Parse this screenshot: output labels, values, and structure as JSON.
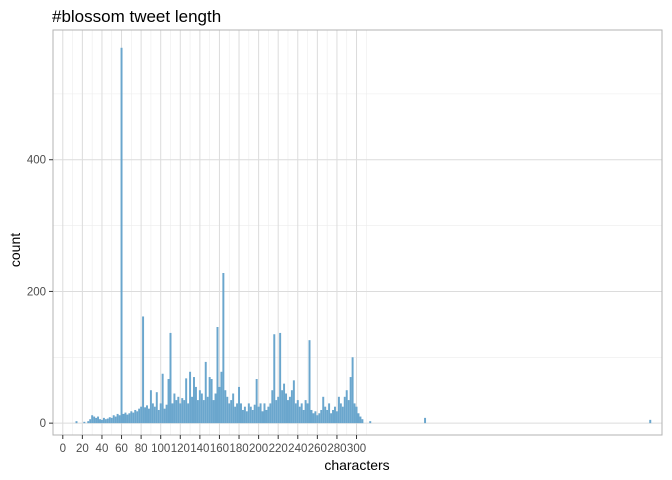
{
  "chart_data": {
    "type": "bar",
    "title": "#blossom tweet length",
    "xlabel": "characters",
    "ylabel": "count",
    "xlim": [
      -10,
      612
    ],
    "ylim": [
      -18,
      597
    ],
    "x_ticks": [
      0,
      20,
      40,
      60,
      80,
      100,
      120,
      140,
      160,
      180,
      200,
      220,
      240,
      260,
      280,
      300
    ],
    "y_ticks": [
      0,
      200,
      400
    ],
    "bar_color": "#6aa6cd",
    "grid": true,
    "bars": [
      {
        "x": 14,
        "y": 3
      },
      {
        "x": 22,
        "y": 2
      },
      {
        "x": 26,
        "y": 3
      },
      {
        "x": 28,
        "y": 6
      },
      {
        "x": 30,
        "y": 12
      },
      {
        "x": 32,
        "y": 10
      },
      {
        "x": 34,
        "y": 8
      },
      {
        "x": 36,
        "y": 10
      },
      {
        "x": 38,
        "y": 6
      },
      {
        "x": 40,
        "y": 5
      },
      {
        "x": 42,
        "y": 8
      },
      {
        "x": 44,
        "y": 6
      },
      {
        "x": 46,
        "y": 7
      },
      {
        "x": 48,
        "y": 9
      },
      {
        "x": 50,
        "y": 8
      },
      {
        "x": 52,
        "y": 12
      },
      {
        "x": 54,
        "y": 10
      },
      {
        "x": 56,
        "y": 14
      },
      {
        "x": 58,
        "y": 12
      },
      {
        "x": 60,
        "y": 570
      },
      {
        "x": 62,
        "y": 14
      },
      {
        "x": 64,
        "y": 16
      },
      {
        "x": 66,
        "y": 13
      },
      {
        "x": 68,
        "y": 15
      },
      {
        "x": 70,
        "y": 18
      },
      {
        "x": 72,
        "y": 16
      },
      {
        "x": 74,
        "y": 20
      },
      {
        "x": 76,
        "y": 18
      },
      {
        "x": 78,
        "y": 22
      },
      {
        "x": 80,
        "y": 25
      },
      {
        "x": 82,
        "y": 162
      },
      {
        "x": 84,
        "y": 24
      },
      {
        "x": 86,
        "y": 27
      },
      {
        "x": 88,
        "y": 22
      },
      {
        "x": 90,
        "y": 50
      },
      {
        "x": 92,
        "y": 30
      },
      {
        "x": 94,
        "y": 25
      },
      {
        "x": 96,
        "y": 47
      },
      {
        "x": 98,
        "y": 20
      },
      {
        "x": 100,
        "y": 30
      },
      {
        "x": 102,
        "y": 75
      },
      {
        "x": 104,
        "y": 22
      },
      {
        "x": 106,
        "y": 28
      },
      {
        "x": 108,
        "y": 67
      },
      {
        "x": 110,
        "y": 137
      },
      {
        "x": 112,
        "y": 30
      },
      {
        "x": 114,
        "y": 45
      },
      {
        "x": 116,
        "y": 35
      },
      {
        "x": 118,
        "y": 40
      },
      {
        "x": 120,
        "y": 30
      },
      {
        "x": 122,
        "y": 38
      },
      {
        "x": 124,
        "y": 35
      },
      {
        "x": 126,
        "y": 68
      },
      {
        "x": 128,
        "y": 30
      },
      {
        "x": 130,
        "y": 78
      },
      {
        "x": 132,
        "y": 40
      },
      {
        "x": 134,
        "y": 70
      },
      {
        "x": 136,
        "y": 55
      },
      {
        "x": 138,
        "y": 35
      },
      {
        "x": 140,
        "y": 50
      },
      {
        "x": 142,
        "y": 45
      },
      {
        "x": 144,
        "y": 35
      },
      {
        "x": 146,
        "y": 93
      },
      {
        "x": 148,
        "y": 40
      },
      {
        "x": 150,
        "y": 70
      },
      {
        "x": 152,
        "y": 67
      },
      {
        "x": 154,
        "y": 35
      },
      {
        "x": 156,
        "y": 45
      },
      {
        "x": 158,
        "y": 146
      },
      {
        "x": 160,
        "y": 55
      },
      {
        "x": 162,
        "y": 78
      },
      {
        "x": 164,
        "y": 228
      },
      {
        "x": 166,
        "y": 50
      },
      {
        "x": 168,
        "y": 40
      },
      {
        "x": 170,
        "y": 30
      },
      {
        "x": 172,
        "y": 35
      },
      {
        "x": 174,
        "y": 45
      },
      {
        "x": 176,
        "y": 25
      },
      {
        "x": 178,
        "y": 30
      },
      {
        "x": 180,
        "y": 55
      },
      {
        "x": 182,
        "y": 30
      },
      {
        "x": 184,
        "y": 20
      },
      {
        "x": 186,
        "y": 25
      },
      {
        "x": 188,
        "y": 18
      },
      {
        "x": 190,
        "y": 30
      },
      {
        "x": 192,
        "y": 25
      },
      {
        "x": 194,
        "y": 20
      },
      {
        "x": 196,
        "y": 28
      },
      {
        "x": 198,
        "y": 67
      },
      {
        "x": 200,
        "y": 25
      },
      {
        "x": 202,
        "y": 30
      },
      {
        "x": 204,
        "y": 18
      },
      {
        "x": 206,
        "y": 30
      },
      {
        "x": 208,
        "y": 20
      },
      {
        "x": 210,
        "y": 25
      },
      {
        "x": 212,
        "y": 30
      },
      {
        "x": 214,
        "y": 50
      },
      {
        "x": 216,
        "y": 135
      },
      {
        "x": 218,
        "y": 35
      },
      {
        "x": 220,
        "y": 40
      },
      {
        "x": 222,
        "y": 137
      },
      {
        "x": 224,
        "y": 50
      },
      {
        "x": 226,
        "y": 60
      },
      {
        "x": 228,
        "y": 45
      },
      {
        "x": 230,
        "y": 35
      },
      {
        "x": 232,
        "y": 40
      },
      {
        "x": 234,
        "y": 50
      },
      {
        "x": 236,
        "y": 65
      },
      {
        "x": 238,
        "y": 30
      },
      {
        "x": 240,
        "y": 35
      },
      {
        "x": 242,
        "y": 25
      },
      {
        "x": 244,
        "y": 30
      },
      {
        "x": 246,
        "y": 20
      },
      {
        "x": 248,
        "y": 35
      },
      {
        "x": 250,
        "y": 30
      },
      {
        "x": 252,
        "y": 126
      },
      {
        "x": 254,
        "y": 20
      },
      {
        "x": 256,
        "y": 15
      },
      {
        "x": 258,
        "y": 18
      },
      {
        "x": 260,
        "y": 12
      },
      {
        "x": 262,
        "y": 15
      },
      {
        "x": 264,
        "y": 20
      },
      {
        "x": 266,
        "y": 40
      },
      {
        "x": 268,
        "y": 25
      },
      {
        "x": 270,
        "y": 20
      },
      {
        "x": 272,
        "y": 30
      },
      {
        "x": 274,
        "y": 15
      },
      {
        "x": 276,
        "y": 20
      },
      {
        "x": 278,
        "y": 25
      },
      {
        "x": 280,
        "y": 18
      },
      {
        "x": 282,
        "y": 40
      },
      {
        "x": 284,
        "y": 30
      },
      {
        "x": 286,
        "y": 25
      },
      {
        "x": 288,
        "y": 40
      },
      {
        "x": 290,
        "y": 50
      },
      {
        "x": 292,
        "y": 35
      },
      {
        "x": 294,
        "y": 70
      },
      {
        "x": 296,
        "y": 100
      },
      {
        "x": 298,
        "y": 30
      },
      {
        "x": 300,
        "y": 25
      },
      {
        "x": 302,
        "y": 15
      },
      {
        "x": 304,
        "y": 10
      },
      {
        "x": 306,
        "y": 6
      },
      {
        "x": 314,
        "y": 3
      },
      {
        "x": 370,
        "y": 8
      },
      {
        "x": 600,
        "y": 5
      }
    ]
  }
}
